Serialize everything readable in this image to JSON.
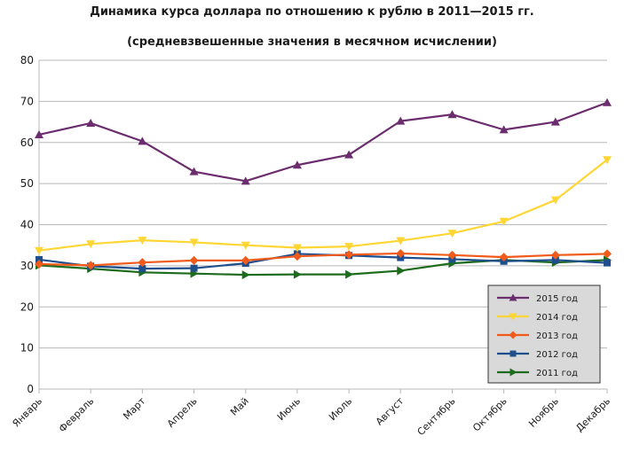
{
  "chart_data": {
    "type": "line",
    "title": "Динамика курса доллара по отношению к рублю в 2011—2015 гг.",
    "subtitle": "(средневзвешенные значения в месячном исчислении)",
    "xlabel": "",
    "ylabel": "",
    "ylim": [
      0,
      80
    ],
    "yticks": [
      0,
      10,
      20,
      30,
      40,
      50,
      60,
      70,
      80
    ],
    "grid": true,
    "legend_position": "bottom-right",
    "categories": [
      "Январь",
      "Февраль",
      "Март",
      "Апрель",
      "Май",
      "Июнь",
      "Июль",
      "Август",
      "Сентябрь",
      "Октябрь",
      "Ноябрь",
      "Декабрь"
    ],
    "series": [
      {
        "name": "2015 год",
        "color": "#6b2d6e",
        "marker": "triangle-up",
        "values": [
          61.9,
          64.7,
          60.3,
          52.9,
          50.6,
          54.5,
          57.0,
          65.2,
          66.8,
          63.1,
          65.0,
          69.7
        ]
      },
      {
        "name": "2014 год",
        "color": "#ffd633",
        "marker": "triangle-down",
        "values": [
          33.7,
          35.3,
          36.2,
          35.7,
          35.0,
          34.4,
          34.7,
          36.1,
          37.9,
          40.8,
          46.0,
          55.8
        ]
      },
      {
        "name": "2013 год",
        "color": "#f05a1a",
        "marker": "diamond",
        "values": [
          30.4,
          30.1,
          30.8,
          31.3,
          31.3,
          32.3,
          32.7,
          33.0,
          32.6,
          32.1,
          32.6,
          32.9
        ]
      },
      {
        "name": "2012 год",
        "color": "#1f4e8c",
        "marker": "square",
        "values": [
          31.5,
          29.9,
          29.3,
          29.4,
          30.6,
          32.9,
          32.5,
          32.0,
          31.6,
          31.1,
          31.4,
          30.7
        ]
      },
      {
        "name": "2011 год",
        "color": "#1d6b1d",
        "marker": "triangle-right",
        "values": [
          30.1,
          29.3,
          28.4,
          28.1,
          27.8,
          27.9,
          27.9,
          28.8,
          30.6,
          31.4,
          30.8,
          31.4
        ]
      }
    ]
  }
}
